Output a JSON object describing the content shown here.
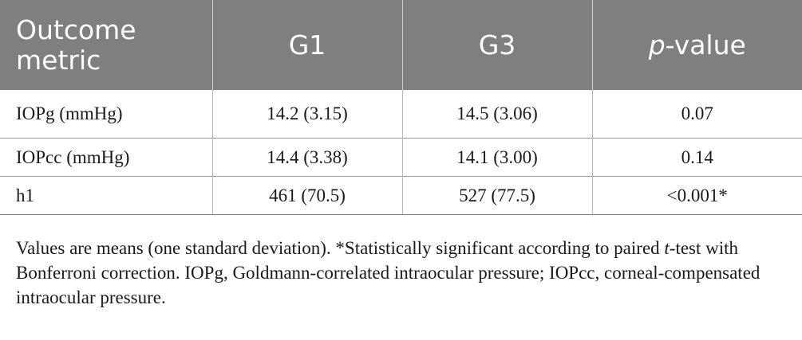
{
  "table": {
    "headers": {
      "metric": "Outcome metric",
      "g1": "G1",
      "g3": "G3",
      "p_prefix": "p",
      "p_suffix": "-value"
    },
    "rows": [
      {
        "metric": "IOPg (mmHg)",
        "g1": "14.2 (3.15)",
        "g3": "14.5 (3.06)",
        "p": "0.07"
      },
      {
        "metric": "IOPcc (mmHg)",
        "g1": "14.4 (3.38)",
        "g3": "14.1 (3.00)",
        "p": "0.14"
      },
      {
        "metric": "h1",
        "g1": "461 (70.5)",
        "g3": "527 (77.5)",
        "p": "<0.001*"
      }
    ],
    "colors": {
      "header_bg": "#7f7f7f",
      "header_text": "#ffffff",
      "body_text": "#1a1a1a"
    }
  },
  "footnote": {
    "part1": "Values are means (one standard deviation). *Statistically significant according to paired ",
    "italic_t": "t",
    "part2": "-test with Bonferroni correction. IOPg, Goldmann-correlated intraocular pressure; IOPcc, corneal-compensated intraocular pressure."
  }
}
